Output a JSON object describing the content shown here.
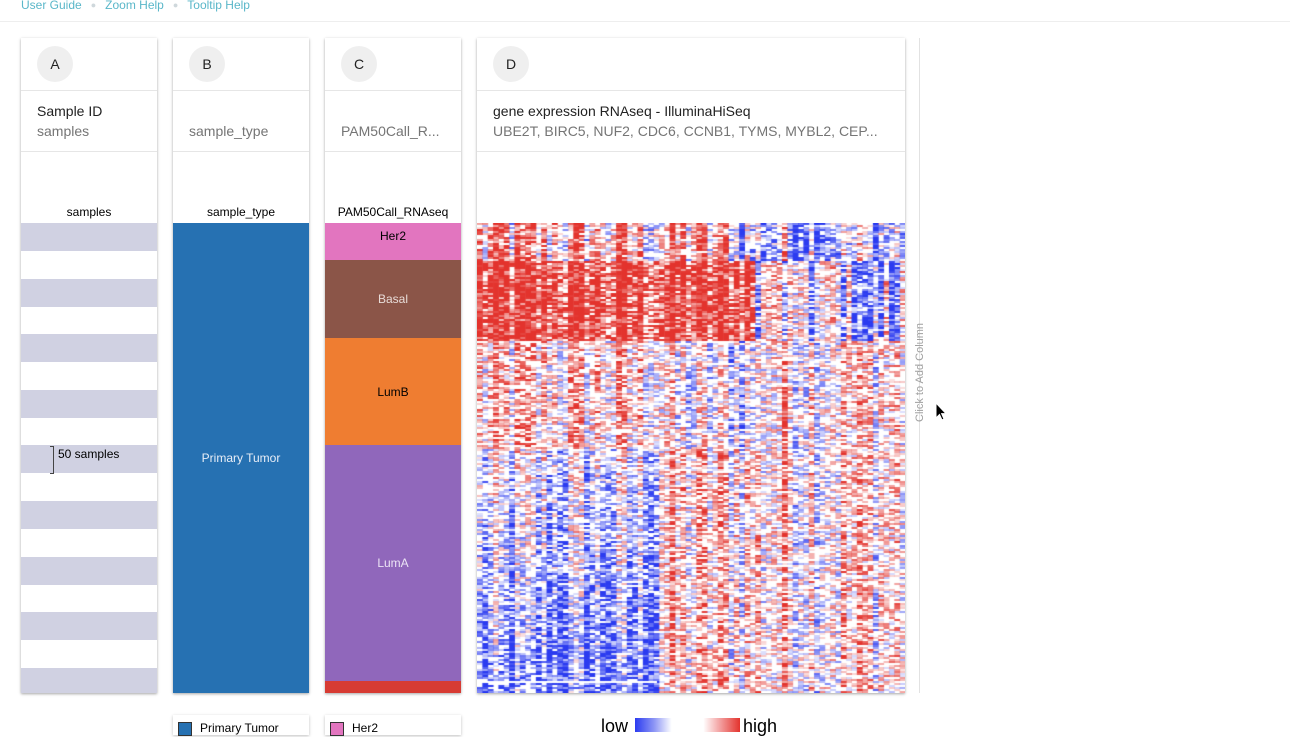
{
  "nav": {
    "links": [
      "User Guide",
      "Zoom Help",
      "Tooltip Help"
    ]
  },
  "columns": {
    "A": {
      "letter": "A",
      "title": "Sample ID",
      "subtitle": "samples",
      "field_label": "samples",
      "zoom_label": "50 samples"
    },
    "B": {
      "letter": "B",
      "title": "",
      "subtitle": "sample_type",
      "field_label": "sample_type",
      "categories": [
        {
          "label": "Primary Tumor",
          "color": "#2671b2",
          "fraction": 1.0
        }
      ]
    },
    "C": {
      "letter": "C",
      "title": "",
      "subtitle": "PAM50Call_R...",
      "field_label": "PAM50Call_RNAseq",
      "categories": [
        {
          "label": "Her2",
          "color": "#e275bf",
          "fraction": 0.079,
          "text_color": "#000000"
        },
        {
          "label": "Basal",
          "color": "#8b5548",
          "fraction": 0.166,
          "text_color": "#e8dcd8"
        },
        {
          "label": "LumB",
          "color": "#ef7d31",
          "fraction": 0.228,
          "text_color": "#000000"
        },
        {
          "label": "LumA",
          "color": "#9067bb",
          "fraction": 0.502,
          "text_color": "#ece4f5"
        },
        {
          "label": "",
          "color": "#d73b33",
          "fraction": 0.025,
          "text_color": "#ffffff"
        }
      ]
    },
    "D": {
      "letter": "D",
      "title": "gene expression RNAseq - IlluminaHiSeq",
      "subtitle": "UBE2T, BIRC5, NUF2, CDC6, CCNB1, TYMS, MYBL2, CEP...",
      "field_label": ""
    }
  },
  "add_column": "Click to Add Column",
  "legends": {
    "B": {
      "label": "Primary Tumor",
      "color": "#2671b2"
    },
    "C": {
      "label": "Her2",
      "color": "#e275bf"
    },
    "D": {
      "low": "low",
      "high": "high"
    }
  },
  "colors": {
    "stripe": "#d0d1e2",
    "heat_low": "#2b3bf0",
    "heat_high": "#e3332d",
    "link": "#5ab7c9"
  },
  "icons": {
    "cursor": "mouse-pointer-icon"
  }
}
